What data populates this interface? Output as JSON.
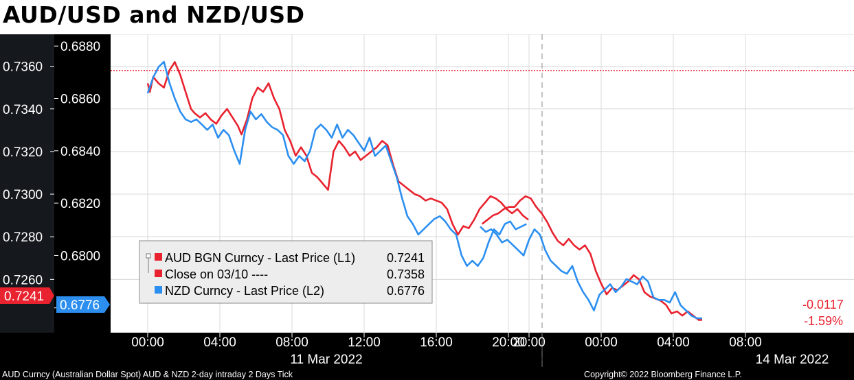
{
  "title": "AUD/USD and NZD/USD",
  "footer": {
    "left": "AUD Curncy (Australian Dollar Spot) AUD & NZD 2-day intraday 2 Days  Tick",
    "right": "Copyright© 2022 Bloomberg Finance L.P."
  },
  "colors": {
    "aud": "#e8222e",
    "nzd": "#2c8ff0",
    "close_line": "#e8222e",
    "axis_bg": "#000000",
    "left_axis_bg": "#15181c",
    "tick_text": "#ffffff",
    "grid": "#d8d8d8"
  },
  "chart_data": {
    "type": "line",
    "x_ticks": [
      "00:00",
      "04:00",
      "08:00",
      "12:00",
      "16:00",
      "20:00",
      "20:00",
      "00:00",
      "04:00",
      "08:00"
    ],
    "date_labels": [
      "11 Mar 2022",
      "14 Mar 2022"
    ],
    "y_left": {
      "ticks": [
        "0.7360",
        "0.7340",
        "0.7320",
        "0.7300",
        "0.7280",
        "0.7260"
      ],
      "range": [
        0.7235,
        0.7375
      ],
      "last_label": "0.7241"
    },
    "y_right": {
      "ticks": [
        "0.6880",
        "0.6860",
        "0.6840",
        "0.6820",
        "0.6800",
        "0.6780"
      ],
      "range": [
        0.67705,
        0.68845
      ],
      "last_label": "0.6776"
    },
    "legend": [
      {
        "label": "AUD BGN Curncy - Last Price (L1)",
        "value": "0.7241"
      },
      {
        "label": "Close on 03/10 ----",
        "value": "0.7358"
      },
      {
        "label": "NZD Curncy - Last Price (L2)",
        "value": "0.6776"
      }
    ],
    "change": {
      "abs": "-0.0117",
      "pct": "-1.59%"
    },
    "close_value": 0.7358,
    "series": [
      {
        "name": "AUD BGN Curncy - Last Price (L1)",
        "axis": "left",
        "x": [
          0,
          0.12,
          0.3,
          0.6,
          0.9,
          1.2,
          1.5,
          1.8,
          2.1,
          2.4,
          2.6,
          2.9,
          3.2,
          3.5,
          3.8,
          4.1,
          4.4,
          4.7,
          5.0,
          5.2,
          5.5,
          5.8,
          6.1,
          6.4,
          6.7,
          7.0,
          7.3,
          7.6,
          7.9,
          8.2,
          8.5,
          8.8,
          9.1,
          9.4,
          9.7,
          10.0,
          10.3,
          10.6,
          10.9,
          11.2,
          11.5,
          11.8,
          12.1,
          12.4,
          12.7,
          13.0,
          13.3,
          13.6,
          13.9,
          14.2,
          14.5,
          14.8,
          15.1,
          15.4,
          15.7,
          16.0,
          16.3,
          16.6,
          16.9,
          17.2,
          17.5,
          17.8,
          18.1,
          18.4,
          18.7,
          19.0,
          19.3,
          19.6,
          19.9,
          20.2,
          20.5,
          20.8,
          21.1,
          21.4,
          21.7,
          22.0,
          22.3,
          22.6,
          22.9,
          23.2,
          23.5,
          23.8,
          24.1,
          24.4,
          24.7,
          25.0,
          25.3,
          25.6,
          25.9,
          26.2,
          26.5,
          26.8,
          27.1,
          27.4,
          27.7,
          28.0,
          28.3,
          28.6,
          28.9,
          29.2,
          29.5,
          29.8,
          30.1,
          30.4,
          30.7,
          31.0,
          31.3,
          31.6,
          31.9,
          32.2,
          32.5,
          32.8,
          33.1,
          33.4,
          33.6
        ],
        "values": [
          0.7352,
          0.7348,
          0.7355,
          0.7352,
          0.735,
          0.7358,
          0.7362,
          0.7356,
          0.7348,
          0.734,
          0.7338,
          0.7336,
          0.7338,
          0.7335,
          0.7333,
          0.7337,
          0.734,
          0.7336,
          0.7332,
          0.7328,
          0.7335,
          0.7345,
          0.735,
          0.7348,
          0.7352,
          0.7345,
          0.734,
          0.733,
          0.7325,
          0.7318,
          0.7322,
          0.7318,
          0.731,
          0.7308,
          0.7305,
          0.7302,
          0.732,
          0.7325,
          0.7322,
          0.7318,
          0.732,
          0.7316,
          0.7318,
          0.732,
          0.7322,
          0.7325,
          0.7323,
          0.7314,
          0.7306,
          0.7304,
          0.7302,
          0.73,
          0.7299,
          0.7297,
          0.7298,
          0.7297,
          0.7296,
          0.7293,
          0.7286,
          0.7281,
          0.7285,
          0.7284,
          0.7288,
          0.7293,
          0.7296,
          0.7299,
          0.7298,
          0.7296,
          0.7293,
          0.7291,
          0.7293,
          0.729,
          0.7288,
          0.7286,
          0.7288,
          0.729,
          0.7291,
          0.7293,
          0.7294,
          0.7294,
          0.7297,
          0.7299,
          0.7298,
          0.7294,
          0.7291,
          0.7287,
          0.7282,
          0.7278,
          0.7276,
          0.7279,
          0.7276,
          0.7274,
          0.7276,
          0.7272,
          0.7264,
          0.7258,
          0.7253,
          0.7256,
          0.7255,
          0.7257,
          0.7259,
          0.7262,
          0.726,
          0.7254,
          0.7252,
          0.7251,
          0.725,
          0.7248,
          0.7244,
          0.7245,
          0.7243,
          0.7245,
          0.7243,
          0.7241,
          0.7241
        ]
      },
      {
        "name": "NZD Curncy - Last Price (L2)",
        "axis": "right",
        "x": [
          0,
          0.3,
          0.6,
          0.9,
          1.2,
          1.5,
          1.8,
          2.1,
          2.4,
          2.7,
          3.0,
          3.3,
          3.6,
          3.9,
          4.2,
          4.5,
          4.8,
          5.1,
          5.4,
          5.7,
          6.0,
          6.3,
          6.6,
          6.9,
          7.2,
          7.5,
          7.8,
          8.1,
          8.4,
          8.7,
          9.0,
          9.3,
          9.6,
          9.9,
          10.2,
          10.5,
          10.8,
          11.1,
          11.4,
          11.7,
          12.0,
          12.3,
          12.6,
          12.9,
          13.2,
          13.5,
          13.8,
          14.1,
          14.4,
          14.7,
          15.0,
          15.3,
          15.6,
          15.9,
          16.2,
          16.5,
          16.8,
          17.1,
          17.4,
          17.7,
          18.0,
          18.3,
          18.6,
          18.9,
          19.2,
          19.5,
          19.8,
          20.1,
          20.4,
          20.7,
          21.0,
          21.3,
          21.6,
          21.9,
          22.2,
          22.5,
          22.8,
          23.1,
          23.4,
          23.7,
          24.0,
          24.3,
          24.6,
          24.9,
          25.2,
          25.5,
          25.8,
          26.1,
          26.4,
          26.7,
          27.0,
          27.3,
          27.6,
          27.9,
          28.2,
          28.5,
          28.8,
          29.1,
          29.4,
          29.7,
          30.0,
          30.3,
          30.6,
          30.9,
          31.2,
          31.5,
          31.8,
          32.1,
          32.4,
          32.7,
          33.0,
          33.3,
          33.6
        ],
        "values": [
          0.6862,
          0.6868,
          0.6872,
          0.6874,
          0.6866,
          0.686,
          0.6855,
          0.6852,
          0.6851,
          0.6852,
          0.685,
          0.6848,
          0.685,
          0.6845,
          0.6848,
          0.6846,
          0.684,
          0.6835,
          0.6848,
          0.6855,
          0.6852,
          0.6854,
          0.6851,
          0.6849,
          0.6848,
          0.6846,
          0.6838,
          0.6835,
          0.6838,
          0.6836,
          0.684,
          0.6848,
          0.685,
          0.6848,
          0.6845,
          0.685,
          0.6845,
          0.6848,
          0.6846,
          0.6843,
          0.684,
          0.6845,
          0.6838,
          0.684,
          0.6842,
          0.6836,
          0.683,
          0.6822,
          0.6815,
          0.6812,
          0.6808,
          0.681,
          0.6812,
          0.6814,
          0.6815,
          0.6813,
          0.681,
          0.6808,
          0.68,
          0.6796,
          0.6798,
          0.6796,
          0.6799,
          0.6805,
          0.681,
          0.6808,
          0.6812,
          0.6813,
          0.681,
          0.6811,
          0.6812,
          0.6811,
          0.6809,
          0.681,
          0.6808,
          0.6805,
          0.6806,
          0.6804,
          0.6802,
          0.68,
          0.6806,
          0.681,
          0.6808,
          0.6802,
          0.6798,
          0.6796,
          0.6794,
          0.6793,
          0.6796,
          0.679,
          0.6786,
          0.6783,
          0.6779,
          0.6785,
          0.6787,
          0.6789,
          0.6786,
          0.6788,
          0.6791,
          0.679,
          0.6789,
          0.6792,
          0.679,
          0.6784,
          0.6783,
          0.6783,
          0.6782,
          0.6786,
          0.6781,
          0.6779,
          0.6777,
          0.6776,
          0.6776
        ]
      }
    ]
  }
}
